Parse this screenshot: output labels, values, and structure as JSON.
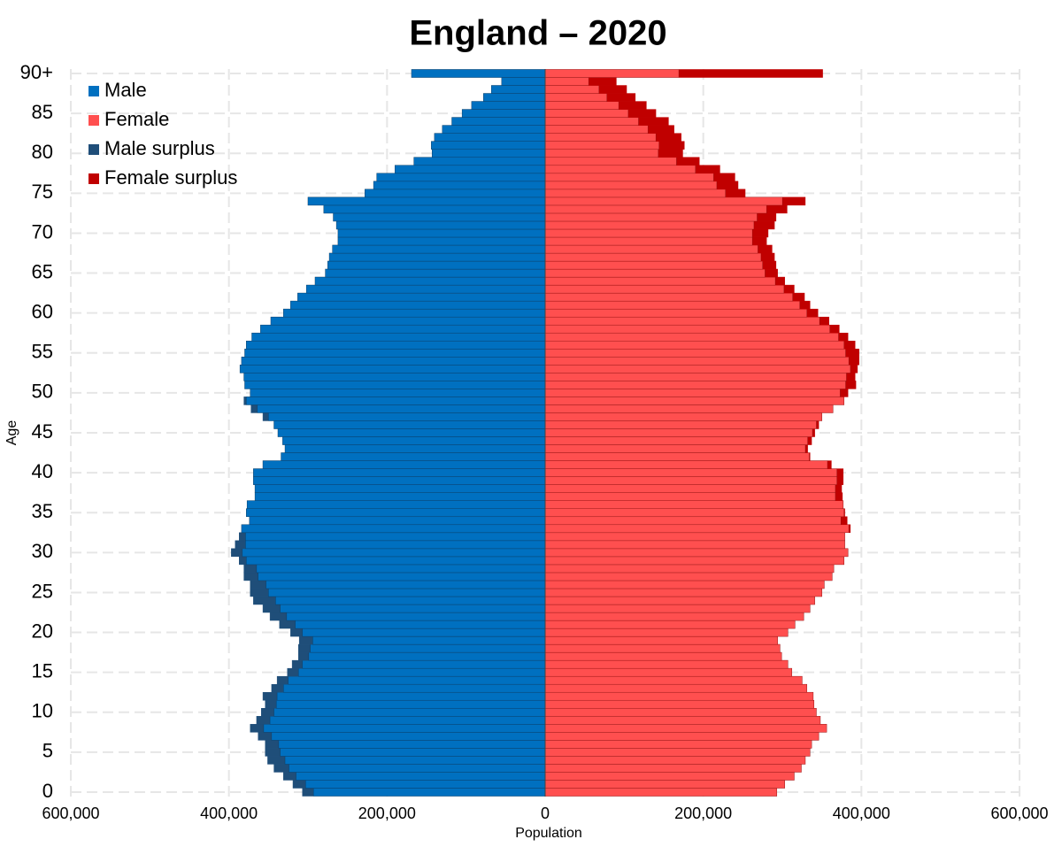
{
  "chart_data": {
    "type": "pyramid",
    "title": "England – 2020",
    "xlabel": "Population",
    "ylabel": "Age",
    "categories": [
      "0",
      null,
      null,
      null,
      null,
      "5",
      null,
      null,
      null,
      null,
      "10",
      null,
      null,
      null,
      null,
      "15",
      null,
      null,
      null,
      null,
      "20",
      null,
      null,
      null,
      null,
      "25",
      null,
      null,
      null,
      null,
      "30",
      null,
      null,
      null,
      null,
      "35",
      null,
      null,
      null,
      null,
      "40",
      null,
      null,
      null,
      null,
      "45",
      null,
      null,
      null,
      null,
      "50",
      null,
      null,
      null,
      null,
      "55",
      null,
      null,
      null,
      null,
      "60",
      null,
      null,
      null,
      null,
      "65",
      null,
      null,
      null,
      null,
      "70",
      null,
      null,
      null,
      null,
      "75",
      null,
      null,
      null,
      null,
      "80",
      null,
      null,
      null,
      null,
      "85",
      null,
      null,
      null,
      null,
      "90+"
    ],
    "series": [
      {
        "name": "Male",
        "color": "#0070c0",
        "side": "left",
        "surplus": {
          "name": "Male surplus",
          "color": "#1f4e79"
        },
        "values": [
          307000,
          319000,
          331000,
          343000,
          351000,
          354000,
          354000,
          363000,
          373000,
          365000,
          359000,
          354000,
          357000,
          346000,
          339000,
          326000,
          320000,
          312000,
          312000,
          311000,
          322000,
          336000,
          348000,
          357000,
          369000,
          373000,
          373000,
          381000,
          381000,
          387000,
          397000,
          392000,
          387000,
          384000,
          374000,
          378000,
          377000,
          367000,
          367000,
          369000,
          369000,
          357000,
          334000,
          329000,
          332000,
          338000,
          343000,
          357000,
          372000,
          381000,
          373000,
          380000,
          381000,
          386000,
          384000,
          380000,
          378000,
          371000,
          360000,
          347000,
          331000,
          322000,
          313000,
          302000,
          291000,
          278000,
          275000,
          273000,
          269000,
          262000,
          262000,
          264000,
          268000,
          280000,
          300000,
          228000,
          217000,
          213000,
          190000,
          166000,
          143000,
          144000,
          140000,
          130000,
          118000,
          105000,
          93000,
          78000,
          68000,
          55000,
          169000
        ]
      },
      {
        "name": "Female",
        "color": "#ff4f4f",
        "side": "right",
        "surplus": {
          "name": "Female surplus",
          "color": "#c00000"
        },
        "values": [
          293000,
          303000,
          315000,
          324000,
          329000,
          335000,
          337000,
          346000,
          356000,
          348000,
          343000,
          340000,
          339000,
          331000,
          325000,
          312000,
          307000,
          299000,
          297000,
          294000,
          307000,
          316000,
          327000,
          335000,
          341000,
          350000,
          353000,
          363000,
          365000,
          378000,
          383000,
          379000,
          379000,
          386000,
          382000,
          379000,
          377000,
          376000,
          375000,
          377000,
          377000,
          362000,
          335000,
          332000,
          337000,
          341000,
          346000,
          350000,
          364000,
          378000,
          383000,
          393000,
          392000,
          395000,
          397000,
          397000,
          392000,
          383000,
          372000,
          359000,
          345000,
          335000,
          328000,
          315000,
          303000,
          294000,
          292000,
          290000,
          287000,
          280000,
          282000,
          290000,
          292000,
          306000,
          329000,
          253000,
          244000,
          240000,
          221000,
          195000,
          174000,
          176000,
          172000,
          163000,
          156000,
          140000,
          128000,
          114000,
          103000,
          90000,
          351000
        ]
      }
    ],
    "xlim": [
      -600000,
      600000
    ],
    "xticks": [
      {
        "value": -600000,
        "label": "600,000"
      },
      {
        "value": -400000,
        "label": "400,000"
      },
      {
        "value": -200000,
        "label": "200,000"
      },
      0,
      {
        "value": 200000,
        "label": "200,000"
      },
      {
        "value": 400000,
        "label": "400,000"
      },
      {
        "value": 600000,
        "label": "600,000"
      }
    ],
    "grid": true,
    "legend": "top-left"
  }
}
